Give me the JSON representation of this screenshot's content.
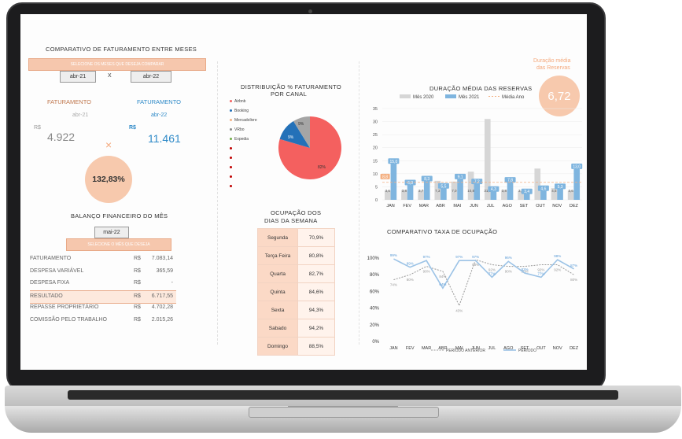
{
  "comparativo": {
    "title": "COMPARATIVO DE FATURAMENTO ENTRE MESES",
    "select_banner": "SELECIONE OS MESES QUE DESEJA COMPARAR",
    "month_a": "abr-21",
    "separator": "X",
    "month_b": "abr-22",
    "fat_label_a": "FATURAMENTO",
    "fat_label_b": "FATURAMENTO",
    "fat_month_a": "abr-21",
    "fat_month_b": "abr-22",
    "currency_a": "R$",
    "currency_b": "R$",
    "value_a": "4.922",
    "value_b": "11.461",
    "multiply_symbol": "×",
    "variation": "132,83%"
  },
  "balanco": {
    "title": "BALANÇO FINANCEIRO DO MÊS",
    "month": "mai-22",
    "select_banner": "SELECIONE O MÊS QUE DESEJA",
    "rows": [
      {
        "label": "FATURAMENTO",
        "currency": "R$",
        "value": "7.083,14"
      },
      {
        "label": "DESPESA VARIÁVEL",
        "currency": "R$",
        "value": "365,59"
      },
      {
        "label": "DESPESA FIXA",
        "currency": "R$",
        "value": "-"
      },
      {
        "label": "RESULTADO",
        "currency": "R$",
        "value": "6.717,55"
      },
      {
        "label": "REPASSE PROPRIETÁRIO",
        "currency": "R$",
        "value": "4.702,28"
      },
      {
        "label": "COMISSÃO PELO TRABALHO",
        "currency": "R$",
        "value": "2.015,26"
      }
    ]
  },
  "distribuicao": {
    "title_line1": "DISTRIBUIÇÃO % FATURAMENTO",
    "title_line2": "POR CANAL",
    "legend": [
      {
        "label": "Airbnb",
        "color": "#f4605f"
      },
      {
        "label": "Booking",
        "color": "#2471b8"
      },
      {
        "label": "Mercadolivre",
        "color": "#f4b183"
      },
      {
        "label": "VRbo",
        "color": "#888888"
      },
      {
        "label": "Expedia",
        "color": "#70ad47"
      },
      {
        "label": "",
        "color": "#c00000"
      },
      {
        "label": "",
        "color": "#c00000"
      },
      {
        "label": "",
        "color": "#c00000"
      },
      {
        "label": "",
        "color": "#c00000"
      },
      {
        "label": "",
        "color": "#c00000"
      }
    ],
    "slice_labels": [
      "82%",
      "9%",
      "9%"
    ]
  },
  "ocupacao_dias": {
    "title_line1": "OCUPAÇÃO DOS",
    "title_line2": "DIAS DA SEMANA",
    "rows": [
      {
        "day": "Segunda",
        "value": "70,9%"
      },
      {
        "day": "Terça Feira",
        "value": "80,8%"
      },
      {
        "day": "Quarta",
        "value": "82,7%"
      },
      {
        "day": "Quinta",
        "value": "84,6%"
      },
      {
        "day": "Sexta",
        "value": "94,3%"
      },
      {
        "day": "Sabado",
        "value": "94,2%"
      },
      {
        "day": "Domingo",
        "value": "88,5%"
      }
    ]
  },
  "duracao_kpi": {
    "label_line1": "Duração média",
    "label_line2": "das Reservas",
    "value": "6,72"
  },
  "chart_data": [
    {
      "type": "bar",
      "title": "DURAÇÃO MÉDIA DAS RESERVAS",
      "categories": [
        "JAN",
        "FEV",
        "MAR",
        "ABR",
        "MAI",
        "JUN",
        "JUL",
        "AGO",
        "SET",
        "OUT",
        "NOV",
        "DEZ"
      ],
      "series": [
        {
          "name": "Mês 2020",
          "color": "#d6d6d6",
          "values": [
            3.6,
            3.8,
            3.7,
            7.3,
            7.0,
            10.8,
            31.0,
            3.8,
            3.5,
            12.0,
            4.5,
            3.6
          ]
        },
        {
          "name": "Mês 2021",
          "color": "#7fb5df",
          "values": [
            15.0,
            6.8,
            8.3,
            5.5,
            9.1,
            7.2,
            4.3,
            7.8,
            3.4,
            4.6,
            5.3,
            13.0
          ]
        },
        {
          "name": "Média Ano",
          "color": "#f4b183",
          "values": [
            6.72,
            6.72,
            6.72,
            6.72,
            6.72,
            6.72,
            6.72,
            6.72,
            6.72,
            6.72,
            6.72,
            6.72
          ]
        }
      ],
      "series_labels": [
        "Mês 2020",
        "Mês 2021",
        "Média Ano"
      ],
      "point_labels": {
        "s2020": [
          "3,6",
          "3,8",
          "3,7",
          "7,3",
          "7,0",
          "10,8",
          "31,0",
          "3,8",
          "3,5",
          "",
          "4,5",
          "3,6"
        ],
        "s2021": [
          "15,0",
          "6,8",
          "8,3",
          "5,5",
          "9,1",
          "7,2",
          "4,3",
          "7,8",
          "3,4",
          "4,6",
          "5,3",
          "13,0"
        ]
      },
      "extra_label": {
        "index": 0,
        "text": "8,8"
      },
      "ylim": [
        0,
        35
      ],
      "yticks": [
        "0",
        "5",
        "10",
        "15",
        "20",
        "25",
        "30",
        "35"
      ],
      "grid": true,
      "legend": "top"
    },
    {
      "type": "line",
      "title": "COMPARATIVO TAXA DE OCUPAÇÃO",
      "categories": [
        "JAN",
        "FEV",
        "MAR",
        "ABR",
        "MAI",
        "JUN",
        "JUL",
        "AGO",
        "SET",
        "OUT",
        "NOV",
        "DEZ"
      ],
      "series": [
        {
          "name": "PERÍODO ANTERIOR",
          "color": "#9a9a9a",
          "values": [
            74,
            80,
            90,
            84,
            43,
            98,
            92,
            90,
            90,
            92,
            92,
            80
          ]
        },
        {
          "name": "PERÍODO",
          "color": "#9cc3e6",
          "values": [
            99,
            89,
            97,
            64,
            97,
            97,
            77,
            96,
            82,
            77,
            98,
            87
          ]
        }
      ],
      "series_labels": [
        "PERÍODO ANTERIOR",
        "PERÍODO"
      ],
      "point_labels": {
        "anterior": [
          "74%",
          "80%",
          "90%",
          "84%",
          "43%",
          "98%",
          "92%",
          "90%",
          "90%",
          "92%",
          "92%",
          "80%"
        ],
        "periodo": [
          "99%",
          "89%",
          "97%",
          "64%",
          "97%",
          "97%",
          "77%",
          "96%",
          "82%",
          "77%",
          "98%",
          "87%"
        ]
      },
      "ylim": [
        0,
        100
      ],
      "yticks": [
        "0%",
        "20%",
        "40%",
        "60%",
        "80%",
        "100%"
      ],
      "grid": false,
      "legend": "bottom"
    }
  ]
}
